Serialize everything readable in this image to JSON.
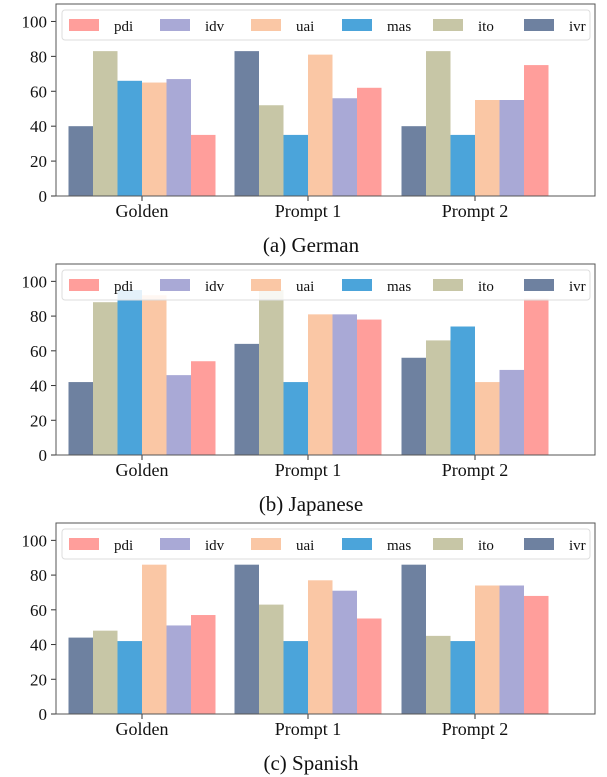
{
  "colors": {
    "pdi": "#ff9e9b",
    "idv": "#a9a9d6",
    "uai": "#fac7a5",
    "mas": "#4ba4da",
    "ito": "#c7c6a6",
    "ivr": "#6e81a0"
  },
  "legend": [
    {
      "key": "pdi",
      "label": "pdi"
    },
    {
      "key": "idv",
      "label": "idv"
    },
    {
      "key": "uai",
      "label": "uai"
    },
    {
      "key": "mas",
      "label": "mas"
    },
    {
      "key": "ito",
      "label": "ito"
    },
    {
      "key": "ivr",
      "label": "ivr"
    }
  ],
  "chart_data": [
    {
      "type": "bar",
      "caption": "(a) German",
      "categories": [
        "Golden",
        "Prompt 1",
        "Prompt 2"
      ],
      "bar_order": [
        "ivr",
        "ito",
        "mas",
        "uai",
        "idv",
        "pdi"
      ],
      "series": [
        {
          "name": "pdi",
          "values": [
            35,
            62,
            75
          ]
        },
        {
          "name": "idv",
          "values": [
            67,
            56,
            55
          ]
        },
        {
          "name": "uai",
          "values": [
            65,
            81,
            55
          ]
        },
        {
          "name": "mas",
          "values": [
            66,
            35,
            35
          ]
        },
        {
          "name": "ito",
          "values": [
            83,
            52,
            83
          ]
        },
        {
          "name": "ivr",
          "values": [
            40,
            83,
            40
          ]
        }
      ],
      "ylim": [
        0,
        110
      ],
      "yticks": [
        0,
        20,
        40,
        60,
        80,
        100
      ],
      "legend_position": "top"
    },
    {
      "type": "bar",
      "caption": "(b) Japanese",
      "categories": [
        "Golden",
        "Prompt 1",
        "Prompt 2"
      ],
      "bar_order": [
        "ivr",
        "ito",
        "mas",
        "uai",
        "idv",
        "pdi"
      ],
      "series": [
        {
          "name": "pdi",
          "values": [
            54,
            78,
            90
          ]
        },
        {
          "name": "idv",
          "values": [
            46,
            81,
            49
          ]
        },
        {
          "name": "uai",
          "values": [
            92,
            81,
            42
          ]
        },
        {
          "name": "mas",
          "values": [
            95,
            42,
            74
          ]
        },
        {
          "name": "ito",
          "values": [
            88,
            95,
            66
          ]
        },
        {
          "name": "ivr",
          "values": [
            42,
            64,
            56
          ]
        }
      ],
      "ylim": [
        0,
        110
      ],
      "yticks": [
        0,
        20,
        40,
        60,
        80,
        100
      ],
      "legend_position": "top"
    },
    {
      "type": "bar",
      "caption": "(c) Spanish",
      "categories": [
        "Golden",
        "Prompt 1",
        "Prompt 2"
      ],
      "bar_order": [
        "ivr",
        "ito",
        "mas",
        "uai",
        "idv",
        "pdi"
      ],
      "series": [
        {
          "name": "pdi",
          "values": [
            57,
            55,
            68
          ]
        },
        {
          "name": "idv",
          "values": [
            51,
            71,
            74
          ]
        },
        {
          "name": "uai",
          "values": [
            86,
            77,
            74
          ]
        },
        {
          "name": "mas",
          "values": [
            42,
            42,
            42
          ]
        },
        {
          "name": "ito",
          "values": [
            48,
            63,
            45
          ]
        },
        {
          "name": "ivr",
          "values": [
            44,
            86,
            86
          ]
        }
      ],
      "ylim": [
        0,
        110
      ],
      "yticks": [
        0,
        20,
        40,
        60,
        80,
        100
      ],
      "legend_position": "top"
    }
  ]
}
